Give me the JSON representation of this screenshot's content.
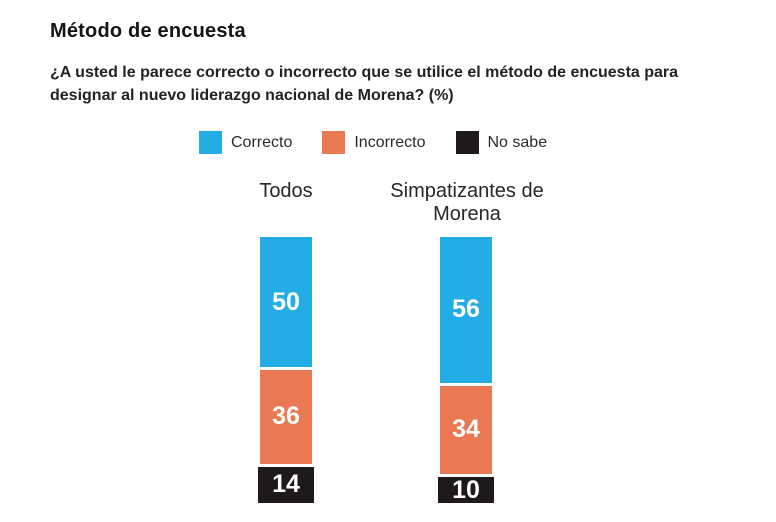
{
  "header": {
    "title": "Método de encuesta",
    "question": "¿A usted le parece correcto o incorrecto que se utilice el método de encuesta para designar al nuevo liderazgo nacional de Morena? (%)"
  },
  "colors": {
    "correcto": "#24ADE4",
    "incorrecto": "#E87952",
    "no_sabe": "#1E191A",
    "text": "#262223",
    "value_label": "#FFFFFF"
  },
  "chart_data": {
    "type": "bar",
    "stacked": true,
    "unit": "%",
    "total_per_bar": 100,
    "legend_position": "top",
    "value_labels": "inside-white-bold",
    "grid": false,
    "categories": [
      "Todos",
      "Simpatizantes de Morena"
    ],
    "series": [
      {
        "name": "Correcto",
        "color": "#24ADE4",
        "values": [
          50,
          56
        ]
      },
      {
        "name": "Incorrecto",
        "color": "#E87952",
        "values": [
          36,
          34
        ]
      },
      {
        "name": "No sabe",
        "color": "#1E191A",
        "values": [
          14,
          10
        ]
      }
    ]
  }
}
